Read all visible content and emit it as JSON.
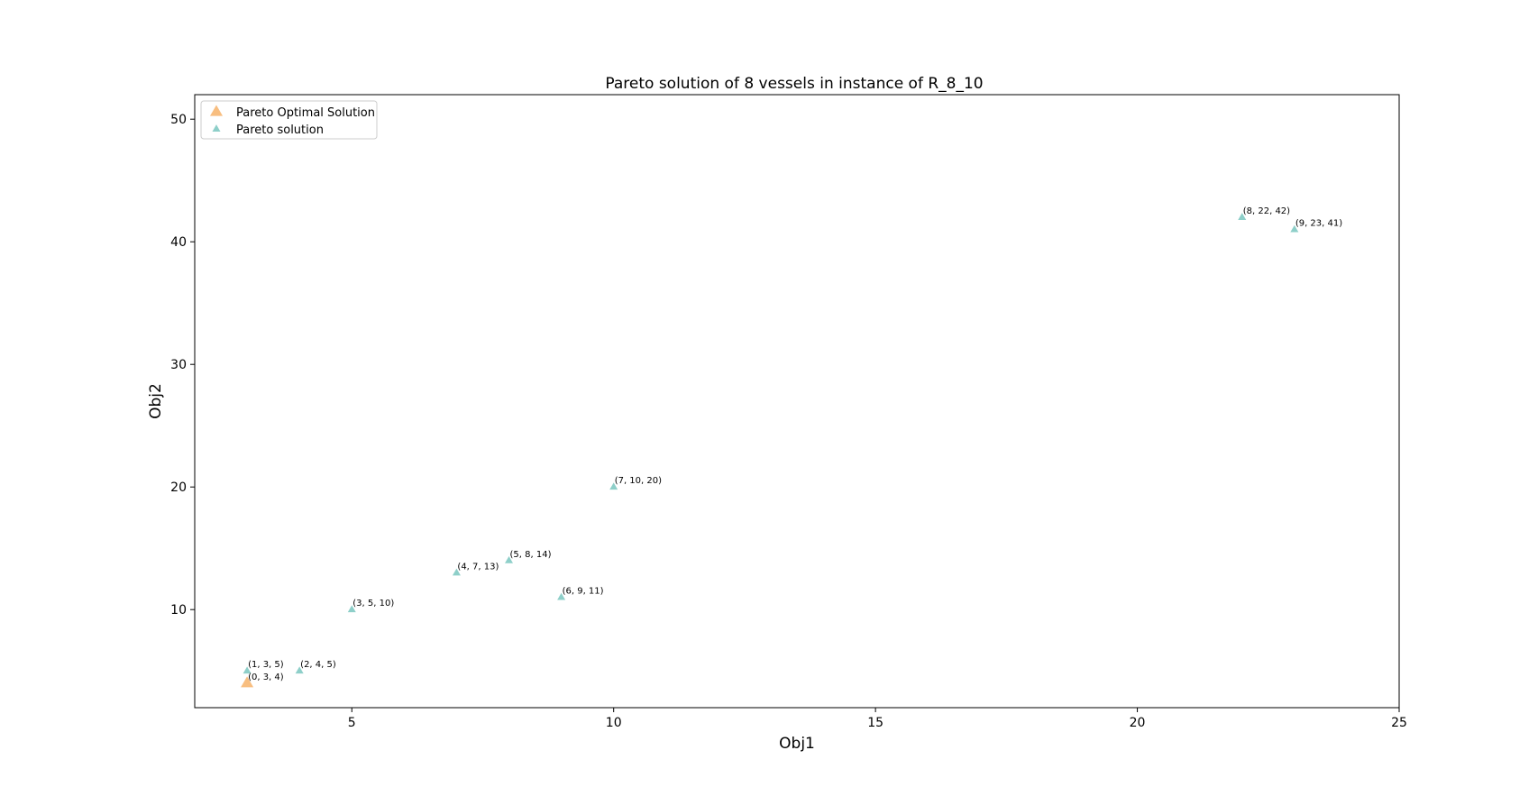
{
  "chart_data": {
    "type": "scatter",
    "title": "Pareto solution of 8 vessels in instance of R_8_10",
    "xlabel": "Obj1",
    "ylabel": "Obj2",
    "xlim": [
      2,
      25
    ],
    "ylim": [
      2,
      52
    ],
    "xticks": [
      5,
      10,
      15,
      20,
      25
    ],
    "yticks": [
      10,
      20,
      30,
      40,
      50
    ],
    "legend_position": "top-left",
    "grid": false,
    "series": [
      {
        "name": "Pareto Optimal Solution",
        "color": "#f8be80",
        "marker": "triangle",
        "points": [
          {
            "x": 3,
            "y": 4,
            "label": "(0, 3, 4)"
          }
        ]
      },
      {
        "name": "Pareto solution",
        "color": "#8ecfc9",
        "marker": "triangle",
        "points": [
          {
            "x": 3,
            "y": 5,
            "label": "(1, 3, 5)"
          },
          {
            "x": 4,
            "y": 5,
            "label": "(2, 4, 5)"
          },
          {
            "x": 5,
            "y": 10,
            "label": "(3, 5, 10)"
          },
          {
            "x": 7,
            "y": 13,
            "label": "(4, 7, 13)"
          },
          {
            "x": 8,
            "y": 14,
            "label": "(5, 8, 14)"
          },
          {
            "x": 9,
            "y": 11,
            "label": "(6, 9, 11)"
          },
          {
            "x": 10,
            "y": 20,
            "label": "(7, 10, 20)"
          },
          {
            "x": 22,
            "y": 42,
            "label": "(8, 22, 42)"
          },
          {
            "x": 23,
            "y": 41,
            "label": "(9, 23, 41)"
          }
        ]
      }
    ]
  }
}
